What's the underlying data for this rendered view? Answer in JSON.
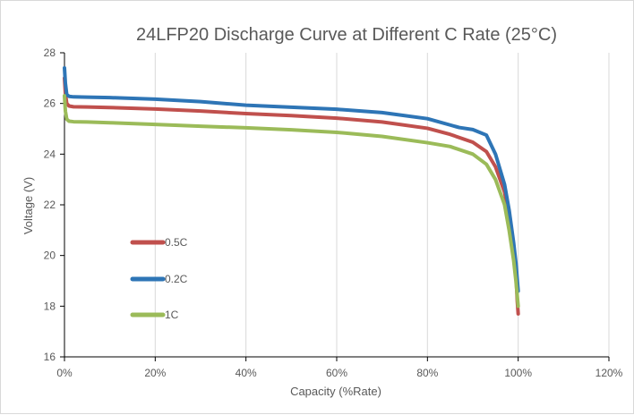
{
  "chart_data": {
    "type": "line",
    "title": "24LFP20 Discharge Curve at Different C Rate (25°C)",
    "xlabel": "Capacity (%Rate)",
    "ylabel": "Voltage (V)",
    "xlim": [
      0,
      120
    ],
    "ylim": [
      16,
      28
    ],
    "x_ticks": [
      "0%",
      "20%",
      "40%",
      "60%",
      "80%",
      "100%",
      "120%"
    ],
    "y_ticks": [
      "16",
      "18",
      "20",
      "22",
      "24",
      "26",
      "28"
    ],
    "x_tick_values": [
      0,
      20,
      40,
      60,
      80,
      100,
      120
    ],
    "y_tick_values": [
      16,
      18,
      20,
      22,
      24,
      26,
      28
    ],
    "grid": "vertical",
    "legend_position": "left",
    "series": [
      {
        "name": "0.5C",
        "color": "#c0504d",
        "x": [
          0,
          0.2,
          0.5,
          1,
          2,
          5,
          10,
          20,
          30,
          40,
          50,
          60,
          70,
          80,
          85,
          90,
          93,
          95,
          97,
          98,
          99,
          99.5,
          99.8,
          100
        ],
        "y": [
          27.0,
          26.4,
          26.0,
          25.9,
          25.87,
          25.86,
          25.84,
          25.78,
          25.7,
          25.6,
          25.52,
          25.42,
          25.27,
          25.02,
          24.78,
          24.47,
          24.1,
          23.5,
          22.5,
          21.5,
          20.3,
          19.3,
          18.2,
          17.7
        ]
      },
      {
        "name": "0.2C",
        "color": "#2e75b6",
        "x": [
          0,
          0.2,
          0.5,
          1,
          2,
          5,
          10,
          20,
          30,
          40,
          50,
          60,
          70,
          80,
          85,
          87,
          90,
          93,
          95,
          97,
          98,
          99,
          99.5,
          100
        ],
        "y": [
          27.4,
          26.8,
          26.35,
          26.28,
          26.26,
          26.25,
          26.23,
          26.17,
          26.07,
          25.93,
          25.85,
          25.77,
          25.64,
          25.4,
          25.15,
          25.05,
          24.97,
          24.75,
          24.0,
          22.8,
          21.8,
          20.5,
          19.7,
          18.6
        ]
      },
      {
        "name": "1C",
        "color": "#9bbb59",
        "x": [
          0,
          0.2,
          0.5,
          1,
          2,
          5,
          10,
          20,
          30,
          40,
          50,
          60,
          70,
          80,
          85,
          90,
          93,
          95,
          97,
          98,
          99,
          99.5,
          100
        ],
        "y": [
          26.3,
          25.7,
          25.38,
          25.3,
          25.28,
          25.27,
          25.24,
          25.17,
          25.1,
          25.04,
          24.96,
          24.86,
          24.7,
          24.45,
          24.3,
          24.0,
          23.6,
          23.0,
          22.0,
          21.0,
          19.8,
          19.0,
          18.0
        ]
      }
    ]
  }
}
